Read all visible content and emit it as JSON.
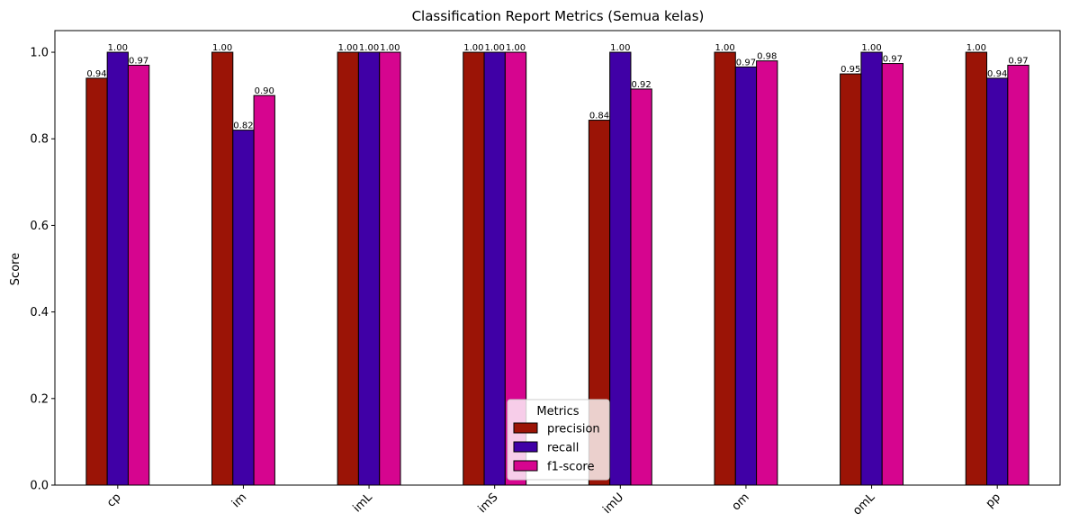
{
  "chart_data": {
    "type": "bar",
    "title": "Classification Report Metrics (Semua kelas)",
    "xlabel": "",
    "ylabel": "Score",
    "ylim": [
      0,
      1.05
    ],
    "yticks": [
      "0.0",
      "0.2",
      "0.4",
      "0.6",
      "0.8",
      "1.0"
    ],
    "categories": [
      "cp",
      "im",
      "imL",
      "imS",
      "imU",
      "om",
      "omL",
      "pp"
    ],
    "series": [
      {
        "name": "precision",
        "color": "#9b1406",
        "values": [
          0.94,
          1.0,
          1.0,
          1.0,
          0.843,
          1.0,
          0.95,
          1.0
        ],
        "labels": [
          "0.94",
          "1.00",
          "1.00",
          "1.00",
          "0.84",
          "1.00",
          "0.95",
          "1.00"
        ]
      },
      {
        "name": "recall",
        "color": "#4000a6",
        "values": [
          1.0,
          0.82,
          1.0,
          1.0,
          1.0,
          0.966,
          1.0,
          0.94
        ],
        "labels": [
          "1.00",
          "0.82",
          "1.00",
          "1.00",
          "1.00",
          "0.97",
          "1.00",
          "0.94"
        ]
      },
      {
        "name": "f1-score",
        "color": "#d6058f",
        "values": [
          0.97,
          0.9,
          1.0,
          1.0,
          0.915,
          0.98,
          0.974,
          0.97
        ],
        "labels": [
          "0.97",
          "0.90",
          "1.00",
          "1.00",
          "0.92",
          "0.98",
          "0.97",
          "0.97"
        ]
      }
    ],
    "legend": {
      "title": "Metrics",
      "placement": "bottom-center"
    },
    "grid": false
  }
}
